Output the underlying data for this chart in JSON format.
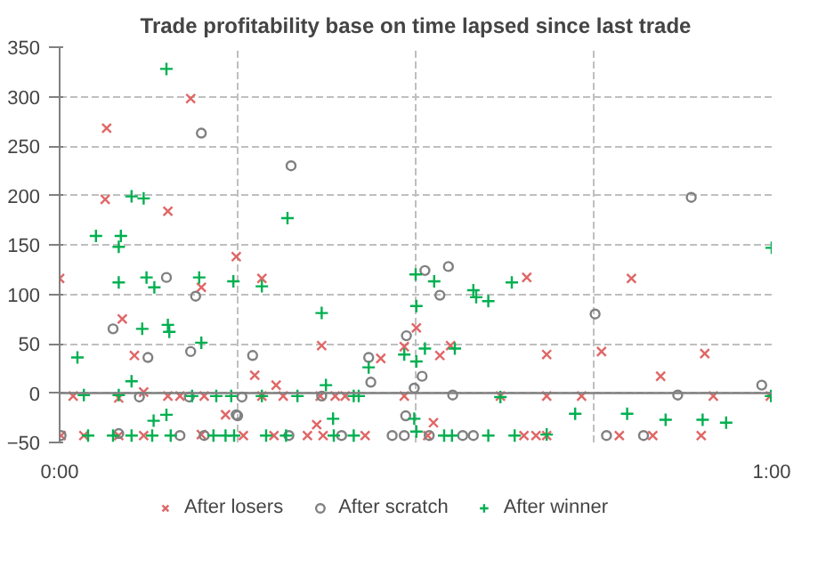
{
  "chart_data": {
    "type": "scatter",
    "title": "Trade profitability base on time lapsed since last trade",
    "xlim": [
      0,
      1
    ],
    "ylim": [
      -50,
      350
    ],
    "xticks": [
      {
        "value": 0,
        "label": "0:00"
      },
      {
        "value": 0.25,
        "label": null
      },
      {
        "value": 0.5,
        "label": null
      },
      {
        "value": 0.75,
        "label": null
      },
      {
        "value": 1,
        "label": "1:00"
      }
    ],
    "yticks": [
      -50,
      0,
      50,
      100,
      150,
      200,
      250,
      300,
      350
    ],
    "grid": true,
    "legend": "bottom",
    "ref_lines": [
      {
        "axis": "y",
        "value": 0,
        "color": "#808080"
      }
    ],
    "series": [
      {
        "name": "After losers",
        "color": "#e06666",
        "marker": "x",
        "x": [
          0.184,
          0.066,
          0.064,
          0.152,
          0.0,
          0.199,
          0.088,
          0.105,
          0.118,
          0.019,
          0.083,
          0.152,
          0.169,
          0.203,
          0.233,
          0.002,
          0.034,
          0.083,
          0.118,
          0.199,
          0.248,
          0.284,
          0.368,
          0.451,
          0.484,
          0.501,
          0.274,
          0.304,
          0.284,
          0.314,
          0.366,
          0.387,
          0.401,
          0.484,
          0.361,
          0.258,
          0.301,
          0.348,
          0.37,
          0.429,
          0.656,
          0.549,
          0.534,
          0.684,
          0.761,
          0.619,
          0.684,
          0.733,
          0.525,
          0.517,
          0.652,
          0.669,
          0.684,
          0.803,
          0.906,
          0.844,
          0.918,
          0.998,
          0.786,
          0.833,
          0.901
        ],
        "values": [
          298,
          268,
          196,
          184,
          116,
          107,
          75,
          38,
          1,
          -3,
          -5,
          -3,
          -3,
          -3,
          -22,
          -43,
          -43,
          -43,
          -43,
          -42,
          138,
          116,
          48,
          35,
          47,
          66,
          18,
          8,
          -3,
          -3,
          -3,
          -3,
          -3,
          -3,
          -32,
          -43,
          -43,
          -43,
          -43,
          -43,
          117,
          48,
          38,
          39,
          42,
          -3,
          -3,
          -3,
          -30,
          -43,
          -43,
          -43,
          -43,
          116,
          40,
          17,
          -3,
          -3,
          -43,
          -43,
          -43
        ]
      },
      {
        "name": "After scratch",
        "color": "#808080",
        "marker": "circle",
        "x": [
          0.199,
          0.15,
          0.191,
          0.075,
          0.124,
          0.184,
          0.112,
          0.182,
          0.248,
          0.002,
          0.083,
          0.169,
          0.203,
          0.325,
          0.271,
          0.256,
          0.25,
          0.434,
          0.437,
          0.487,
          0.513,
          0.509,
          0.498,
          0.368,
          0.396,
          0.467,
          0.486,
          0.484,
          0.322,
          0.546,
          0.534,
          0.552,
          0.752,
          0.768,
          0.566,
          0.581,
          0.519,
          0.887,
          0.868,
          0.986,
          0.82
        ],
        "values": [
          263,
          117,
          98,
          65,
          36,
          42,
          -4,
          -4,
          -22,
          -43,
          -41,
          -43,
          -43,
          230,
          38,
          -4,
          -23,
          36,
          11,
          58,
          124,
          17,
          5,
          -3,
          -43,
          -43,
          -23,
          -43,
          -43,
          128,
          99,
          -2,
          80,
          -43,
          -43,
          -43,
          -43,
          198,
          -2,
          8,
          -43
        ]
      },
      {
        "name": "After winner",
        "color": "#00b050",
        "marker": "cross",
        "x": [
          0.15,
          0.101,
          0.118,
          0.051,
          0.086,
          0.083,
          0.083,
          0.122,
          0.133,
          0.196,
          0.244,
          0.116,
          0.152,
          0.154,
          0.199,
          0.025,
          0.101,
          0.034,
          0.083,
          0.186,
          0.22,
          0.132,
          0.15,
          0.04,
          0.075,
          0.101,
          0.13,
          0.156,
          0.216,
          0.233,
          0.32,
          0.284,
          0.368,
          0.374,
          0.434,
          0.484,
          0.5,
          0.501,
          0.501,
          0.513,
          0.241,
          0.284,
          0.334,
          0.413,
          0.42,
          0.384,
          0.498,
          0.501,
          0.245,
          0.29,
          0.318,
          0.385,
          0.413,
          0.526,
          0.581,
          0.585,
          0.602,
          0.635,
          0.555,
          0.619,
          0.724,
          0.54,
          0.551,
          0.602,
          0.639,
          0.684,
          1.0,
          0.999,
          0.797,
          0.851,
          0.903,
          0.936
        ],
        "values": [
          328,
          199,
          197,
          159,
          159,
          148,
          112,
          117,
          107,
          117,
          113,
          65,
          69,
          62,
          51,
          36,
          12,
          -2,
          -2,
          -3,
          -3,
          -28,
          -22,
          -43,
          -43,
          -43,
          -43,
          -43,
          -43,
          -43,
          177,
          108,
          81,
          8,
          26,
          39,
          120,
          88,
          32,
          45,
          -3,
          -3,
          -3,
          -3,
          -3,
          -26,
          -26,
          -39,
          -43,
          -43,
          -43,
          -43,
          -43,
          113,
          104,
          97,
          93,
          112,
          45,
          -4,
          -21,
          -43,
          -43,
          -43,
          -43,
          -42,
          147,
          -3,
          -21,
          -27,
          -27,
          -30
        ]
      }
    ]
  }
}
